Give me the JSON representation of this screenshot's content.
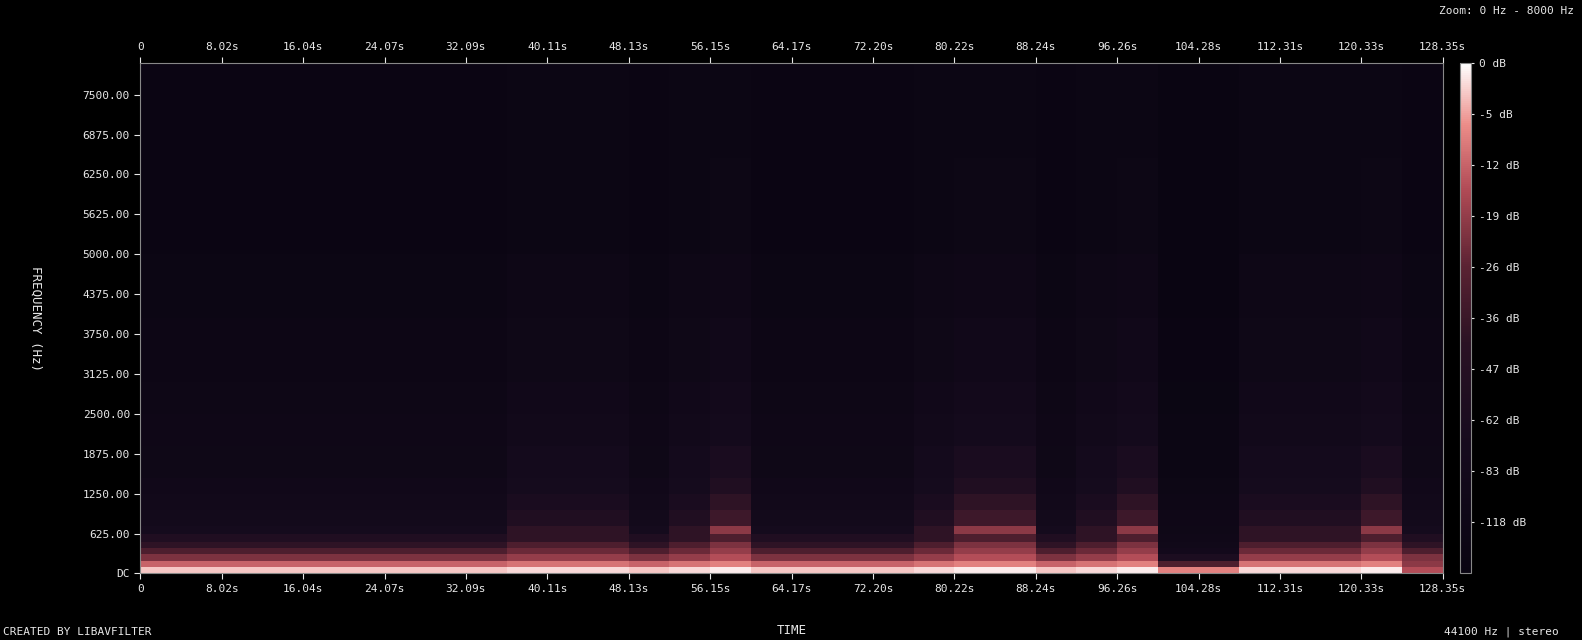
{
  "chart_data": {
    "type": "heatmap",
    "x_label": "TIME",
    "y_label": "FREQUENCY (Hz)",
    "annotations": [
      "Zoom: 0 Hz - 8000 Hz",
      "CREATED BY LIBAVFILTER",
      "44100 Hz | stereo"
    ],
    "xlim": [
      0,
      128.35
    ],
    "xticks": [
      {
        "value": 0,
        "label": "0"
      },
      {
        "value": 8.02,
        "label": "8.02s"
      },
      {
        "value": 16.04,
        "label": "16.04s"
      },
      {
        "value": 24.07,
        "label": "24.07s"
      },
      {
        "value": 32.09,
        "label": "32.09s"
      },
      {
        "value": 40.11,
        "label": "40.11s"
      },
      {
        "value": 48.13,
        "label": "48.13s"
      },
      {
        "value": 56.15,
        "label": "56.15s"
      },
      {
        "value": 64.17,
        "label": "64.17s"
      },
      {
        "value": 72.2,
        "label": "72.20s"
      },
      {
        "value": 80.22,
        "label": "80.22s"
      },
      {
        "value": 88.24,
        "label": "88.24s"
      },
      {
        "value": 96.26,
        "label": "96.26s"
      },
      {
        "value": 104.28,
        "label": "104.28s"
      },
      {
        "value": 112.31,
        "label": "112.31s"
      },
      {
        "value": 120.33,
        "label": "120.33s"
      },
      {
        "value": 128.35,
        "label": "128.35s"
      }
    ],
    "ylim": [
      0,
      8000
    ],
    "yticks": [
      {
        "value": 0,
        "label": "DC"
      },
      {
        "value": 625,
        "label": "625.00"
      },
      {
        "value": 1250,
        "label": "1250.00"
      },
      {
        "value": 1875,
        "label": "1875.00"
      },
      {
        "value": 2500,
        "label": "2500.00"
      },
      {
        "value": 3125,
        "label": "3125.00"
      },
      {
        "value": 3750,
        "label": "3750.00"
      },
      {
        "value": 4375,
        "label": "4375.00"
      },
      {
        "value": 5000,
        "label": "5000.00"
      },
      {
        "value": 5625,
        "label": "5625.00"
      },
      {
        "value": 6250,
        "label": "6250.00"
      },
      {
        "value": 6875,
        "label": "6875.00"
      },
      {
        "value": 7500,
        "label": "7500.00"
      }
    ],
    "x_edges": [
      0,
      4.01,
      8.02,
      12.03,
      16.04,
      20.05,
      24.07,
      28.08,
      32.09,
      36.1,
      40.11,
      44.12,
      48.13,
      52.14,
      56.15,
      60.16,
      64.17,
      68.19,
      72.2,
      76.21,
      80.22,
      84.23,
      88.24,
      92.25,
      96.26,
      100.27,
      104.28,
      108.3,
      112.31,
      116.32,
      120.33,
      124.34,
      128.35
    ],
    "y_edges": [
      0,
      100,
      200,
      300,
      400,
      500,
      625,
      750,
      1000,
      1250,
      1500,
      2000,
      2500,
      3000,
      4000,
      5000,
      6500,
      8000
    ],
    "cells": [
      [
        -3,
        -3,
        -3,
        -3,
        -3,
        -3,
        -3,
        -3,
        -3,
        -2,
        -2,
        -2,
        -3,
        -2,
        -1,
        -3,
        -3,
        -3,
        -3,
        -2,
        -1,
        -1,
        -3,
        -2,
        -1,
        -8,
        -8,
        -2,
        -2,
        -2,
        -1,
        -15
      ],
      [
        -12,
        -12,
        -12,
        -12,
        -12,
        -12,
        -12,
        -12,
        -12,
        -10,
        -10,
        -10,
        -12,
        -10,
        -8,
        -12,
        -12,
        -12,
        -12,
        -10,
        -8,
        -8,
        -12,
        -10,
        -8,
        -30,
        -30,
        -10,
        -10,
        -10,
        -8,
        -20
      ],
      [
        -22,
        -22,
        -22,
        -22,
        -22,
        -22,
        -22,
        -22,
        -22,
        -19,
        -19,
        -19,
        -22,
        -19,
        -15,
        -22,
        -22,
        -22,
        -22,
        -19,
        -15,
        -15,
        -22,
        -19,
        -15,
        -60,
        -60,
        -19,
        -19,
        -19,
        -15,
        -22
      ],
      [
        -30,
        -30,
        -30,
        -30,
        -30,
        -30,
        -30,
        -30,
        -30,
        -24,
        -24,
        -24,
        -30,
        -24,
        -19,
        -30,
        -30,
        -30,
        -30,
        -24,
        -19,
        -19,
        -30,
        -24,
        -19,
        -90,
        -90,
        -24,
        -24,
        -24,
        -19,
        -30
      ],
      [
        -40,
        -40,
        -40,
        -40,
        -40,
        -40,
        -40,
        -40,
        -40,
        -30,
        -30,
        -30,
        -40,
        -30,
        -22,
        -40,
        -40,
        -40,
        -40,
        -30,
        -22,
        -22,
        -40,
        -30,
        -22,
        -100,
        -100,
        -30,
        -30,
        -30,
        -22,
        -40
      ],
      [
        -55,
        -55,
        -55,
        -55,
        -55,
        -55,
        -55,
        -55,
        -55,
        -40,
        -40,
        -40,
        -55,
        -40,
        -30,
        -55,
        -55,
        -55,
        -55,
        -40,
        -30,
        -30,
        -55,
        -40,
        -30,
        -110,
        -110,
        -40,
        -40,
        -40,
        -30,
        -55
      ],
      [
        -75,
        -75,
        -75,
        -75,
        -75,
        -75,
        -75,
        -75,
        -75,
        -40,
        -40,
        -40,
        -75,
        -40,
        -20,
        -75,
        -75,
        -75,
        -75,
        -40,
        -20,
        -20,
        -75,
        -40,
        -20,
        -115,
        -115,
        -40,
        -40,
        -40,
        -20,
        -75
      ],
      [
        -85,
        -85,
        -85,
        -85,
        -85,
        -85,
        -85,
        -85,
        -85,
        -55,
        -55,
        -55,
        -85,
        -55,
        -35,
        -85,
        -85,
        -85,
        -85,
        -55,
        -35,
        -35,
        -85,
        -55,
        -35,
        -120,
        -120,
        -55,
        -55,
        -55,
        -35,
        -85
      ],
      [
        -95,
        -95,
        -95,
        -95,
        -95,
        -95,
        -95,
        -95,
        -95,
        -65,
        -65,
        -65,
        -95,
        -65,
        -40,
        -95,
        -95,
        -95,
        -95,
        -65,
        -40,
        -40,
        -95,
        -65,
        -40,
        -125,
        -125,
        -65,
        -65,
        -65,
        -40,
        -95
      ],
      [
        -105,
        -105,
        -105,
        -105,
        -105,
        -105,
        -105,
        -105,
        -105,
        -75,
        -75,
        -75,
        -105,
        -75,
        -55,
        -105,
        -105,
        -105,
        -105,
        -75,
        -55,
        -55,
        -105,
        -75,
        -55,
        -130,
        -130,
        -75,
        -75,
        -75,
        -55,
        -105
      ],
      [
        -112,
        -112,
        -112,
        -112,
        -112,
        -112,
        -112,
        -112,
        -112,
        -83,
        -83,
        -83,
        -112,
        -83,
        -65,
        -112,
        -112,
        -112,
        -112,
        -83,
        -65,
        -65,
        -112,
        -83,
        -65,
        -135,
        -135,
        -83,
        -83,
        -83,
        -65,
        -112
      ],
      [
        -120,
        -120,
        -120,
        -120,
        -120,
        -120,
        -120,
        -120,
        -120,
        -95,
        -95,
        -95,
        -120,
        -95,
        -80,
        -120,
        -120,
        -120,
        -120,
        -95,
        -80,
        -80,
        -120,
        -95,
        -80,
        -140,
        -140,
        -95,
        -95,
        -95,
        -80,
        -120
      ],
      [
        -125,
        -125,
        -125,
        -125,
        -125,
        -125,
        -125,
        -125,
        -125,
        -105,
        -105,
        -105,
        -125,
        -105,
        -90,
        -125,
        -125,
        -125,
        -125,
        -105,
        -90,
        -90,
        -125,
        -105,
        -90,
        -142,
        -142,
        -105,
        -105,
        -105,
        -90,
        -125
      ],
      [
        -132,
        -132,
        -132,
        -132,
        -132,
        -132,
        -132,
        -132,
        -132,
        -115,
        -115,
        -115,
        -132,
        -115,
        -105,
        -132,
        -132,
        -132,
        -132,
        -115,
        -105,
        -105,
        -132,
        -115,
        -105,
        -145,
        -145,
        -115,
        -115,
        -115,
        -105,
        -132
      ],
      [
        -138,
        -138,
        -138,
        -138,
        -138,
        -138,
        -138,
        -138,
        -138,
        -125,
        -125,
        -125,
        -138,
        -125,
        -118,
        -138,
        -138,
        -138,
        -138,
        -125,
        -118,
        -118,
        -138,
        -125,
        -118,
        -147,
        -147,
        -125,
        -125,
        -125,
        -118,
        -138
      ],
      [
        -143,
        -143,
        -143,
        -143,
        -143,
        -143,
        -143,
        -143,
        -143,
        -135,
        -135,
        -135,
        -143,
        -135,
        -128,
        -143,
        -143,
        -143,
        -143,
        -135,
        -128,
        -128,
        -143,
        -135,
        -128,
        -148,
        -148,
        -135,
        -135,
        -135,
        -128,
        -143
      ],
      [
        -146,
        -146,
        -146,
        -146,
        -146,
        -146,
        -146,
        -146,
        -146,
        -140,
        -140,
        -140,
        -146,
        -140,
        -135,
        -146,
        -146,
        -146,
        -146,
        -140,
        -135,
        -135,
        -146,
        -140,
        -135,
        -149,
        -149,
        -140,
        -140,
        -140,
        -135,
        -146
      ]
    ],
    "colorbar": {
      "range": [
        -150,
        0
      ],
      "ticks": [
        {
          "value": 0,
          "label": "0 dB"
        },
        {
          "value": -5,
          "label": "-5 dB"
        },
        {
          "value": -12,
          "label": "-12 dB"
        },
        {
          "value": -19,
          "label": "-19 dB"
        },
        {
          "value": -26,
          "label": "-26 dB"
        },
        {
          "value": -36,
          "label": "-36 dB"
        },
        {
          "value": -47,
          "label": "-47 dB"
        },
        {
          "value": -62,
          "label": "-62 dB"
        },
        {
          "value": -83,
          "label": "-83 dB"
        },
        {
          "value": -118,
          "label": "-118 dB"
        }
      ]
    }
  }
}
